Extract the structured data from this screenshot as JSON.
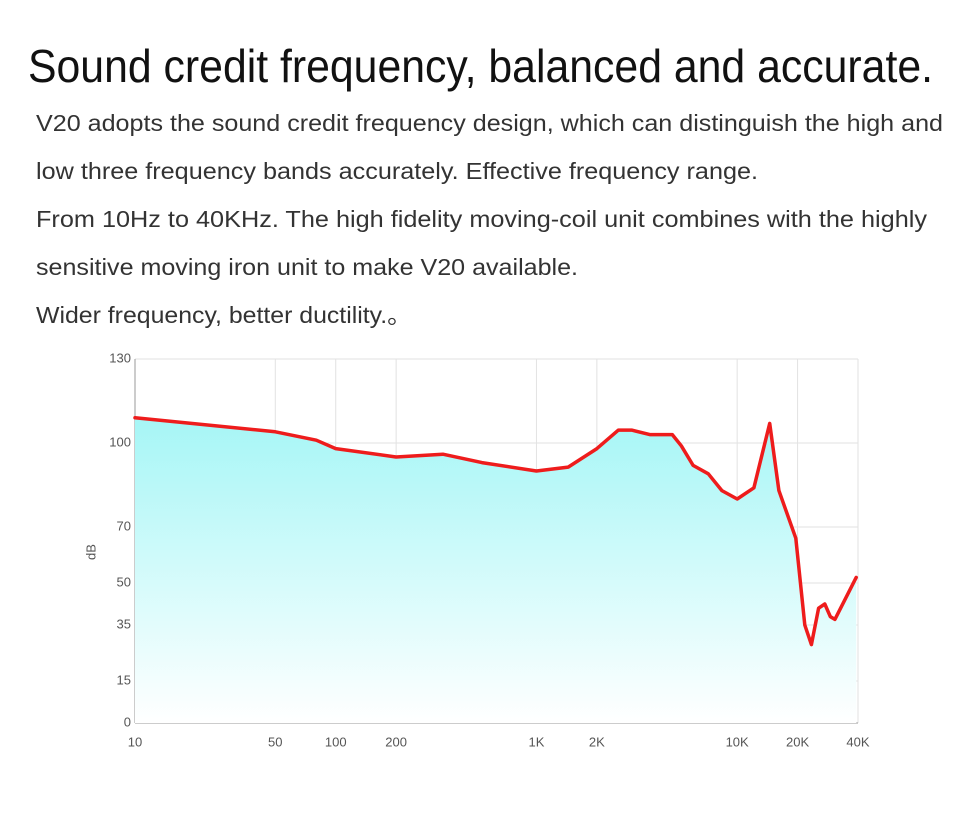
{
  "heading": "Sound credit frequency, balanced and accurate.",
  "paragraph_lines": [
    "V20 adopts the sound credit frequency design, which can distinguish the high and",
    "low three frequency bands accurately. Effective frequency range.",
    "From 10Hz to 40KHz. The high fidelity moving-coil unit combines with the highly",
    "sensitive moving iron unit to make V20 available.",
    "Wider frequency, better ductility.。"
  ],
  "chart_data": {
    "type": "line",
    "y_label": "dB",
    "x_scale": "log",
    "xlim": [
      10,
      40000
    ],
    "xticks": [
      10,
      50,
      100,
      200,
      {
        "value": 1000,
        "label": "1K"
      },
      {
        "value": 2000,
        "label": "2K"
      },
      {
        "value": 10000,
        "label": "10K"
      },
      {
        "value": 20000,
        "label": "20K"
      },
      {
        "value": 40000,
        "label": "40K"
      }
    ],
    "ylim": [
      0,
      130
    ],
    "yticks": [
      0,
      15,
      35,
      50,
      70,
      100,
      130
    ],
    "grid": true,
    "area_fill": true,
    "x": [
      10,
      50,
      80,
      100,
      200,
      342,
      535,
      1000,
      1440,
      2000,
      2560,
      2980,
      3670,
      4750,
      5270,
      6030,
      7180,
      8390,
      10000,
      12120,
      14520,
      16150,
      19600,
      21730,
      23430,
      25460,
      27320,
      29120,
      30700,
      39200
    ],
    "series": [
      {
        "color": "#ee1c1c",
        "values": [
          109,
          104,
          101,
          98,
          95,
          96,
          93,
          90,
          91.4,
          98,
          104.6,
          104.6,
          103,
          103,
          99,
          92,
          89,
          83,
          80,
          84,
          107,
          83,
          66,
          35,
          28,
          41,
          42.5,
          38,
          37,
          52
        ]
      }
    ]
  }
}
